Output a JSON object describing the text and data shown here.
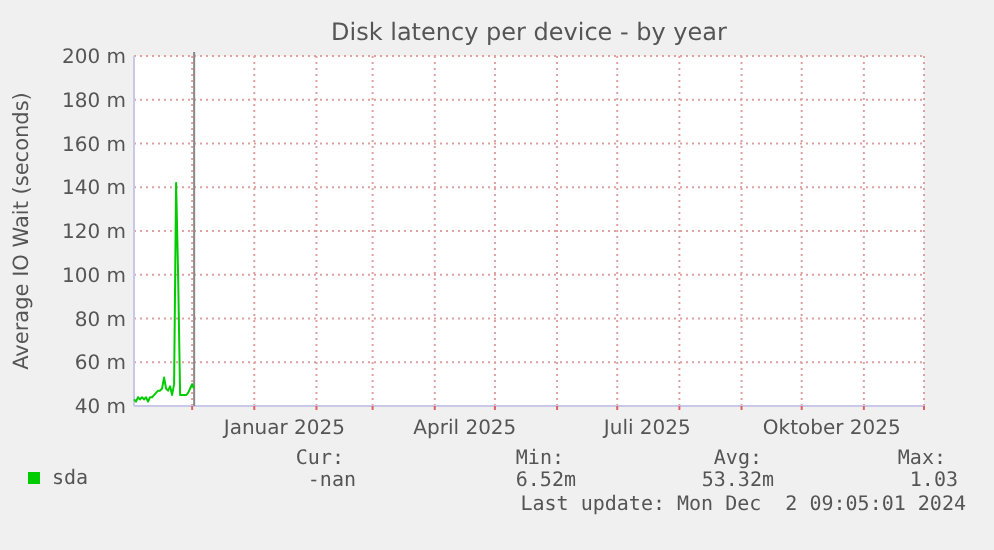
{
  "chart_data": {
    "type": "line",
    "title": "Disk latency per device - by year",
    "ylabel": "Average IO Wait (seconds)",
    "x": [
      "2024-11-02",
      "2024-11-03",
      "2024-11-04",
      "2024-11-05",
      "2024-11-06",
      "2024-11-07",
      "2024-11-08",
      "2024-11-09",
      "2024-11-10",
      "2024-11-11",
      "2024-11-12",
      "2024-11-13",
      "2024-11-14",
      "2024-11-15",
      "2024-11-16",
      "2024-11-17",
      "2024-11-18",
      "2024-11-19",
      "2024-11-20",
      "2024-11-21",
      "2024-11-22",
      "2024-11-23",
      "2024-11-24",
      "2024-11-25",
      "2024-11-26",
      "2024-11-27",
      "2024-11-28",
      "2024-11-29",
      "2024-11-30",
      "2024-12-01",
      "2024-12-02"
    ],
    "series": [
      {
        "name": "sda",
        "color": "#00cc00",
        "values": [
          43,
          42,
          44,
          43,
          44,
          43,
          44,
          42,
          44,
          44,
          45,
          46,
          47,
          47,
          48,
          53,
          48,
          47,
          49,
          45,
          50,
          142,
          100,
          45,
          45,
          45,
          45,
          46,
          48,
          50,
          48
        ]
      }
    ],
    "xlim": [
      "2024-11-02",
      "2025-12-01"
    ],
    "xticks": [
      {
        "value": "2024-12-01",
        "label": null
      },
      {
        "value": "2025-01-01",
        "label": null
      },
      {
        "value": "2025-01-16",
        "label": "Januar 2025"
      },
      {
        "value": "2025-02-01",
        "label": null
      },
      {
        "value": "2025-03-01",
        "label": null
      },
      {
        "value": "2025-04-01",
        "label": null
      },
      {
        "value": "2025-04-16",
        "label": "April 2025"
      },
      {
        "value": "2025-05-01",
        "label": null
      },
      {
        "value": "2025-06-01",
        "label": null
      },
      {
        "value": "2025-07-01",
        "label": null
      },
      {
        "value": "2025-07-16",
        "label": "Juli 2025"
      },
      {
        "value": "2025-08-01",
        "label": null
      },
      {
        "value": "2025-09-01",
        "label": null
      },
      {
        "value": "2025-10-01",
        "label": null
      },
      {
        "value": "2025-10-16",
        "label": "Oktober 2025"
      },
      {
        "value": "2025-11-01",
        "label": null
      },
      {
        "value": "2025-12-01",
        "label": null
      }
    ],
    "ylim": [
      40,
      200
    ],
    "yticks": [
      {
        "value": 40,
        "label": "40 m"
      },
      {
        "value": 60,
        "label": "60 m"
      },
      {
        "value": 80,
        "label": "80 m"
      },
      {
        "value": 100,
        "label": "100 m"
      },
      {
        "value": 120,
        "label": "120 m"
      },
      {
        "value": 140,
        "label": "140 m"
      },
      {
        "value": 160,
        "label": "160 m"
      },
      {
        "value": 180,
        "label": "180 m"
      },
      {
        "value": 200,
        "label": "200 m"
      }
    ],
    "ref_lines": [
      {
        "axis": "x",
        "value": "2024-12-02",
        "color": "#888888"
      }
    ],
    "grid": true,
    "legend": "bottom left",
    "annotations": [
      "Cur:",
      "Min:",
      "Avg:",
      "Max:",
      "-nan",
      "6.52m",
      "53.32m",
      "1.03",
      "Last update: Mon Dec  2 09:05:01 2024"
    ]
  }
}
